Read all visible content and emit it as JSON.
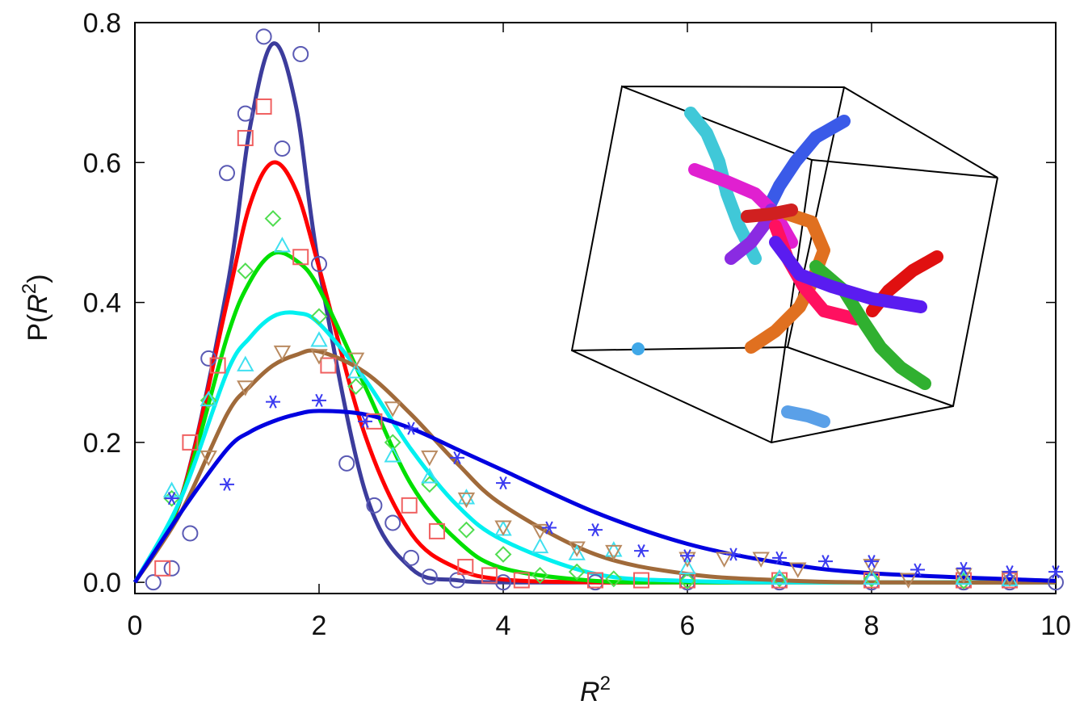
{
  "chart_data": {
    "type": "scatter",
    "x_label": [
      "R",
      "2"
    ],
    "y_label": [
      "P(",
      "R",
      "2",
      ")"
    ],
    "xlim": [
      0,
      10
    ],
    "ylim": [
      -0.016,
      0.8
    ],
    "xticks": [
      0,
      2,
      4,
      6,
      8,
      10
    ],
    "yticks": [
      {
        "value": 0,
        "label": "0.0"
      },
      0.2,
      0.4,
      0.6,
      0.8
    ],
    "series": [
      {
        "color": "#5a5ab4",
        "marker": "circle",
        "x": [
          0.2,
          0.4,
          0.6,
          0.8,
          1.0,
          1.2,
          1.4,
          1.6,
          1.8,
          2.0,
          2.3,
          2.6,
          2.8,
          3.0,
          3.2,
          3.5,
          4,
          5,
          6,
          7,
          8,
          9,
          9.5,
          10
        ],
        "values": [
          0.0,
          0.02,
          0.07,
          0.32,
          0.585,
          0.67,
          0.78,
          0.62,
          0.755,
          0.455,
          0.17,
          0.11,
          0.085,
          0.035,
          0.008,
          0.003,
          0,
          0,
          0,
          0,
          0,
          0,
          0,
          0
        ]
      },
      {
        "color": "#f06060",
        "marker": "square",
        "x": [
          0.3,
          0.6,
          0.9,
          1.2,
          1.4,
          1.8,
          2.1,
          2.6,
          2.98,
          3.28,
          3.59,
          3.85,
          4.2,
          5,
          5.5,
          6,
          7,
          8,
          9,
          9.5
        ],
        "values": [
          0.02,
          0.2,
          0.31,
          0.635,
          0.68,
          0.465,
          0.31,
          0.23,
          0.11,
          0.073,
          0.022,
          0.01,
          0.003,
          0.003,
          0.003,
          0.003,
          0.003,
          0.003,
          0.003,
          0.003
        ]
      },
      {
        "color": "#50dd50",
        "marker": "diamond",
        "x": [
          0.4,
          0.8,
          1.2,
          1.5,
          2.0,
          2.4,
          2.8,
          3.2,
          3.6,
          4.0,
          4.4,
          4.8,
          5.2,
          6,
          7,
          8,
          9
        ],
        "values": [
          0.12,
          0.26,
          0.445,
          0.52,
          0.38,
          0.28,
          0.2,
          0.14,
          0.075,
          0.04,
          0.01,
          0.015,
          0.005,
          0.002,
          0.005,
          0.005,
          0.002
        ]
      },
      {
        "color": "#40e0f0",
        "marker": "triangle",
        "x": [
          0.4,
          0.8,
          1.2,
          1.6,
          2.0,
          2.4,
          2.8,
          3.2,
          3.6,
          4,
          4.4,
          4.8,
          5.2,
          6,
          7,
          8,
          9,
          9.5
        ],
        "values": [
          0.13,
          0.26,
          0.31,
          0.48,
          0.345,
          0.3,
          0.18,
          0.15,
          0.12,
          0.075,
          0.05,
          0.04,
          0.045,
          0.02,
          0.005,
          0.005,
          0.005,
          0.003
        ]
      },
      {
        "color": "#b98a60",
        "marker": "triangle-down",
        "x": [
          0.8,
          1.2,
          1.6,
          2.0,
          2.4,
          2.8,
          3.2,
          3.6,
          4,
          4.4,
          4.8,
          5.2,
          6,
          6.4,
          6.8,
          7.2,
          8,
          8.4,
          9,
          9.5
        ],
        "values": [
          0.18,
          0.28,
          0.33,
          0.325,
          0.32,
          0.25,
          0.18,
          0.12,
          0.08,
          0.075,
          0.05,
          0.045,
          0.035,
          0.035,
          0.035,
          0.02,
          0.025,
          0.005,
          0.012,
          0.008
        ]
      },
      {
        "color": "#3a3af0",
        "marker": "asterisk",
        "x": [
          0.4,
          1.0,
          1.5,
          2.0,
          2.5,
          3.0,
          3.5,
          4.0,
          4.5,
          5.0,
          5.5,
          6.0,
          6.5,
          7.0,
          7.5,
          8.0,
          8.5,
          9.0,
          9.5,
          10.0
        ],
        "values": [
          0.12,
          0.14,
          0.258,
          0.26,
          0.23,
          0.22,
          0.178,
          0.142,
          0.078,
          0.075,
          0.045,
          0.038,
          0.04,
          0.035,
          0.03,
          0.03,
          0.018,
          0.02,
          0.015,
          0.015
        ]
      }
    ],
    "fit_x": [
      0,
      0.5,
      1,
      1.25,
      1.5,
      1.75,
      2,
      2.5,
      3,
      3.5,
      4,
      5,
      6,
      7,
      8,
      10
    ],
    "fits": [
      {
        "color": "#3c3c9c",
        "values": [
          0,
          0.12,
          0.42,
          0.65,
          0.77,
          0.68,
          0.45,
          0.13,
          0.02,
          0.003,
          0,
          0,
          0,
          0,
          0,
          0
        ]
      },
      {
        "color": "#ff0000",
        "values": [
          0,
          0.12,
          0.4,
          0.54,
          0.6,
          0.56,
          0.45,
          0.21,
          0.07,
          0.02,
          0.004,
          0,
          0,
          0,
          0,
          0
        ]
      },
      {
        "color": "#00e000",
        "values": [
          0,
          0.12,
          0.35,
          0.43,
          0.47,
          0.46,
          0.42,
          0.28,
          0.14,
          0.06,
          0.02,
          0.002,
          0,
          0,
          0,
          0
        ]
      },
      {
        "color": "#00f0f0",
        "values": [
          0,
          0.12,
          0.3,
          0.35,
          0.38,
          0.385,
          0.37,
          0.29,
          0.19,
          0.11,
          0.06,
          0.012,
          0.002,
          0,
          0,
          0
        ]
      },
      {
        "color": "#a06a3a",
        "values": [
          0,
          0.1,
          0.24,
          0.28,
          0.31,
          0.325,
          0.33,
          0.3,
          0.24,
          0.17,
          0.11,
          0.04,
          0.012,
          0.003,
          0,
          0
        ]
      },
      {
        "color": "#0000e0",
        "values": [
          0,
          0.1,
          0.19,
          0.215,
          0.23,
          0.24,
          0.245,
          0.24,
          0.22,
          0.19,
          0.16,
          0.1,
          0.055,
          0.028,
          0.013,
          0.002
        ]
      }
    ]
  }
}
